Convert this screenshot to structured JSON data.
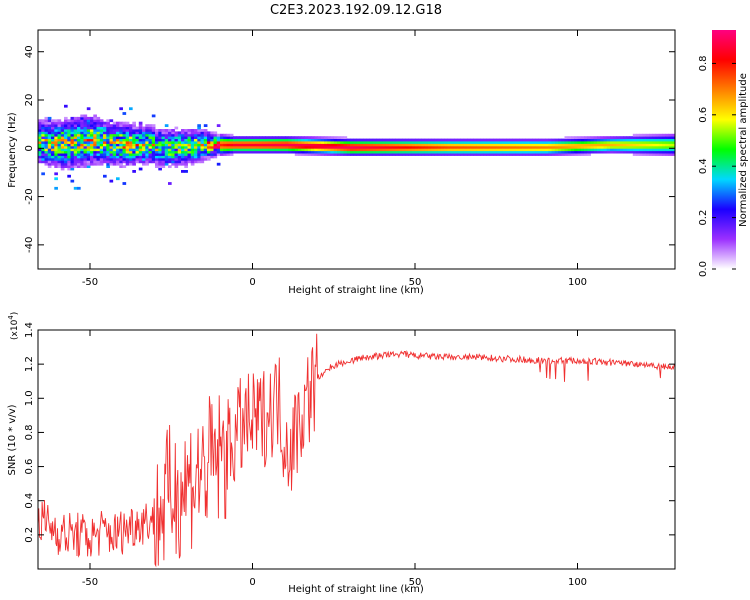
{
  "title": "C2E3.2023.192.09.12.G18",
  "chart_data": [
    {
      "type": "heatmap",
      "xlabel": "Height of straight line (km)",
      "ylabel": "Frequency (Hz)",
      "xlim": [
        -66,
        130
      ],
      "ylim": [
        -50,
        49
      ],
      "xticks": [
        -50,
        0,
        50,
        100
      ],
      "yticks": [
        -40,
        -20,
        0,
        20,
        40
      ],
      "colorbar": {
        "label": "Normalized spectral amplitude",
        "range": [
          0.0,
          0.93
        ],
        "ticks": [
          "0.0",
          "0.2",
          "0.4",
          "0.6",
          "0.8"
        ],
        "stops": [
          "#ffffff",
          "#9b30ff",
          "#1a00ff",
          "#00d8ff",
          "#00ff00",
          "#ffff00",
          "#ff7f00",
          "#ff0000",
          "#ff0080"
        ]
      },
      "ridge": {
        "height_km": [
          -66,
          -58,
          -50,
          -45,
          -40,
          -34,
          -28,
          -22,
          -16,
          -12,
          -6,
          0,
          10,
          30,
          60,
          90,
          110,
          130
        ],
        "center_hz": [
          2,
          1,
          3,
          2,
          1,
          1,
          0,
          0,
          1,
          1,
          1,
          1,
          1,
          0,
          0,
          0,
          1,
          1
        ],
        "spread_hz": [
          8,
          9,
          9,
          8,
          8,
          7,
          7,
          7,
          6,
          4,
          3,
          3,
          3,
          3,
          3,
          3,
          3,
          4
        ],
        "peak_amplitude": [
          0.55,
          0.6,
          0.6,
          0.55,
          0.6,
          0.6,
          0.55,
          0.5,
          0.55,
          0.75,
          0.85,
          0.85,
          0.88,
          0.9,
          0.75,
          0.7,
          0.65,
          0.55
        ]
      },
      "noise_region_km": [
        -66,
        -10
      ]
    },
    {
      "type": "line",
      "xlabel": "Height of straight line (km)",
      "ylabel": "SNR (10 * v/v)",
      "multiplier": "(x10",
      "multiplier_exp": "4",
      "xlim": [
        -66,
        130
      ],
      "ylim": [
        0.0,
        1.4
      ],
      "xticks": [
        -50,
        0,
        50,
        100
      ],
      "yticks": [
        "0.2",
        "0.4",
        "0.6",
        "0.8",
        "1.0",
        "1.2",
        "1.4"
      ],
      "color": "#f03030",
      "series": [
        {
          "name": "SNR",
          "x": [
            -66,
            -62,
            -58,
            -54,
            -50,
            -46,
            -42,
            -38,
            -34,
            -30,
            -28,
            -26,
            -24,
            -22,
            -20,
            -18,
            -16,
            -14,
            -12,
            -10,
            -8,
            -6,
            -4,
            -2,
            0,
            2,
            4,
            6,
            8,
            10,
            12,
            14,
            16,
            18,
            20,
            22,
            24,
            26,
            30,
            35,
            40,
            45,
            50,
            60,
            70,
            80,
            90,
            100,
            110,
            120,
            130
          ],
          "y": [
            0.3,
            0.25,
            0.2,
            0.2,
            0.18,
            0.22,
            0.2,
            0.25,
            0.28,
            0.3,
            0.35,
            0.42,
            0.45,
            0.48,
            0.5,
            0.55,
            0.55,
            0.6,
            0.62,
            0.65,
            0.68,
            0.75,
            0.82,
            0.85,
            0.85,
            0.87,
            0.9,
            0.95,
            1.0,
            0.75,
            0.72,
            0.85,
            0.95,
            1.05,
            1.12,
            1.15,
            1.18,
            1.2,
            1.22,
            1.24,
            1.25,
            1.26,
            1.25,
            1.24,
            1.24,
            1.23,
            1.22,
            1.22,
            1.21,
            1.2,
            1.18
          ]
        }
      ]
    }
  ]
}
